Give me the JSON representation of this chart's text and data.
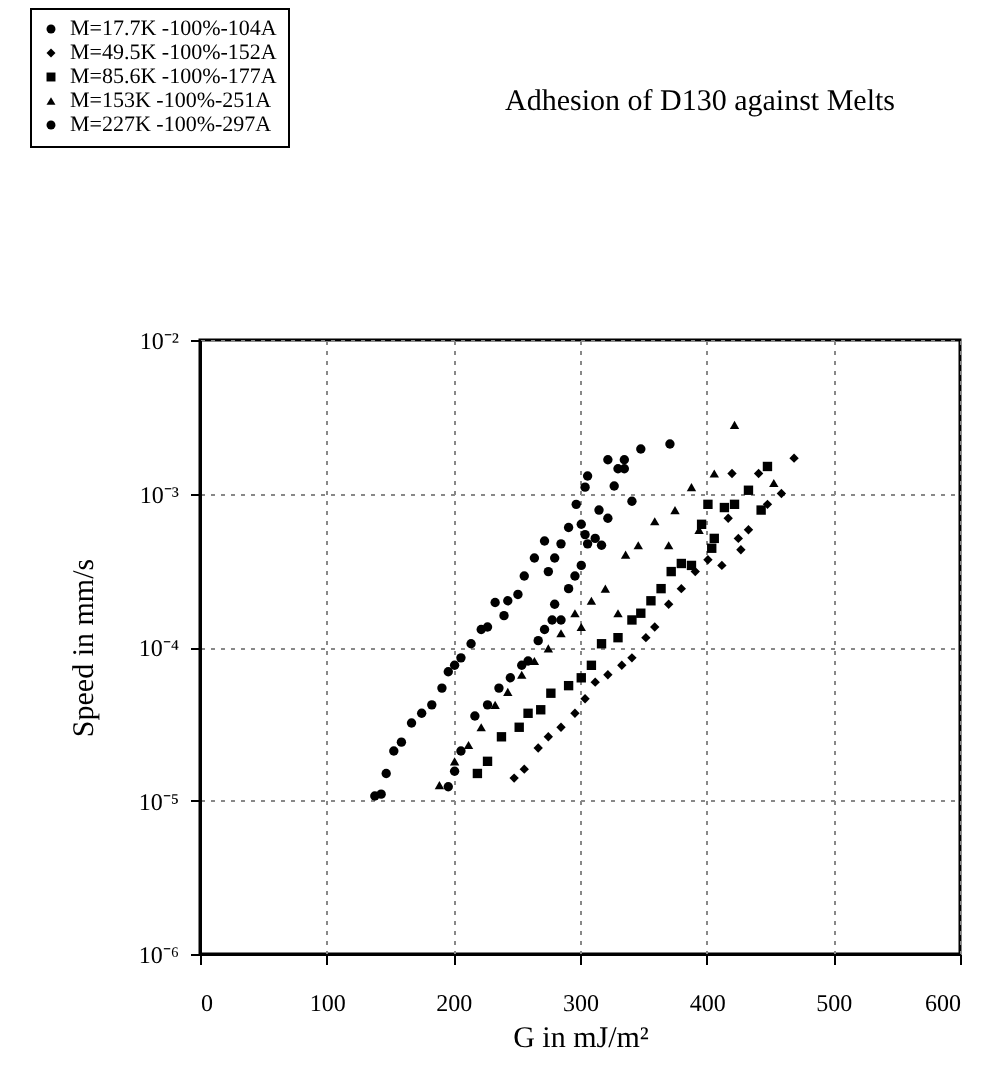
{
  "chart_data": {
    "type": "scatter",
    "title": "Adhesion of D130 against Melts",
    "xlabel": "G in mJ/m²",
    "ylabel": "Speed in mm/s",
    "log": "y",
    "grid": true,
    "legend": "top left",
    "xlim": [
      0,
      600
    ],
    "xticks": [
      0,
      100,
      200,
      300,
      400,
      500,
      600
    ],
    "ylim": [
      1e-06,
      0.01
    ],
    "yticks": [
      {
        "value": 1e-06,
        "label": "10⁻⁶"
      },
      {
        "value": 1e-05,
        "label": "10⁻⁵"
      },
      {
        "value": 0.0001,
        "label": "10⁻⁴"
      },
      {
        "value": 0.001,
        "label": "10⁻³"
      },
      {
        "value": 0.01,
        "label": "10⁻²"
      }
    ],
    "series": [
      {
        "name": "M=17.7K -100%-104A",
        "color": "#000000",
        "marker": "circle",
        "x": [
          196,
          201,
          206,
          217,
          227,
          236,
          245,
          254,
          259,
          267,
          272,
          278,
          285,
          280,
          291,
          296,
          301,
          306,
          312,
          317,
          304,
          322,
          330,
          335,
          341,
          348,
          371
        ],
        "values": [
          1.23e-05,
          1.55e-05,
          2.1e-05,
          3.55e-05,
          4.2e-05,
          5.4e-05,
          6.3e-05,
          7.6e-05,
          8.1e-05,
          0.00011,
          0.00013,
          0.00015,
          0.00015,
          0.00019,
          0.00024,
          0.00029,
          0.00034,
          0.00047,
          0.00051,
          0.00046,
          0.00054,
          0.00069,
          0.00145,
          0.00145,
          0.00089,
          0.00195,
          0.0021
        ]
      },
      {
        "name": "M=49.5K -100%-152A",
        "color": "#000000",
        "marker": "diamond",
        "x": [
          248,
          256,
          267,
          275,
          285,
          296,
          304,
          312,
          322,
          333,
          341,
          352,
          359,
          370,
          380,
          391,
          401,
          412,
          417,
          425,
          427,
          433,
          441,
          448,
          459,
          420,
          469
        ],
        "values": [
          1.4e-05,
          1.6e-05,
          2.2e-05,
          2.6e-05,
          3e-05,
          3.7e-05,
          4.6e-05,
          5.9e-05,
          6.6e-05,
          7.6e-05,
          8.5e-05,
          0.000115,
          0.000135,
          0.00019,
          0.00024,
          0.00031,
          0.00037,
          0.00034,
          0.00069,
          0.00051,
          0.00043,
          0.00058,
          0.00135,
          0.00085,
          0.001,
          0.00135,
          0.0017
        ]
      },
      {
        "name": "M=85.6K -100%-177A",
        "color": "#000000",
        "marker": "square",
        "x": [
          219,
          227,
          238,
          252,
          259,
          269,
          277,
          291,
          301,
          309,
          317,
          330,
          341,
          348,
          356,
          364,
          372,
          380,
          388,
          396,
          404,
          406,
          401,
          414,
          422,
          433,
          443,
          448
        ],
        "values": [
          1.5e-05,
          1.8e-05,
          2.6e-05,
          3e-05,
          3.7e-05,
          3.9e-05,
          5e-05,
          5.6e-05,
          6.3e-05,
          7.6e-05,
          0.000105,
          0.000115,
          0.00015,
          0.000166,
          0.0002,
          0.00024,
          0.00031,
          0.00035,
          0.00034,
          0.00063,
          0.00044,
          0.00051,
          0.00085,
          0.00081,
          0.00085,
          0.00105,
          0.00078,
          0.0015
        ]
      },
      {
        "name": "M=153K -100%-251A",
        "color": "#000000",
        "marker": "triangle",
        "x": [
          189,
          201,
          212,
          222,
          233,
          243,
          254,
          264,
          275,
          285,
          296,
          301,
          309,
          320,
          330,
          336,
          346,
          359,
          370,
          375,
          388,
          394,
          406,
          453,
          422
        ],
        "values": [
          1.26e-05,
          1.8e-05,
          2.3e-05,
          3e-05,
          4.2e-05,
          5.1e-05,
          6.6e-05,
          8.1e-05,
          9.8e-05,
          0.000123,
          0.000166,
          0.000135,
          0.0002,
          0.00024,
          0.000166,
          0.0004,
          0.00046,
          0.00066,
          0.00046,
          0.00078,
          0.0011,
          0.00058,
          0.00135,
          0.00117,
          0.0028
        ]
      },
      {
        "name": "M=227K -100%-297A",
        "color": "#000000",
        "marker": "circle",
        "x": [
          138,
          143,
          147,
          153,
          159,
          167,
          175,
          183,
          191,
          196,
          201,
          206,
          214,
          222,
          227,
          233,
          240,
          243,
          251,
          256,
          264,
          275,
          272,
          280,
          285,
          291,
          297,
          301,
          306,
          304,
          315,
          322,
          327,
          335
        ],
        "values": [
          1.07e-05,
          1.1e-05,
          1.5e-05,
          2.1e-05,
          2.4e-05,
          3.2e-05,
          3.7e-05,
          4.2e-05,
          5.4e-05,
          6.9e-05,
          7.6e-05,
          8.5e-05,
          0.000105,
          0.00013,
          0.000135,
          0.000195,
          0.00016,
          0.0002,
          0.00022,
          0.00029,
          0.00038,
          0.00031,
          0.00049,
          0.00038,
          0.00047,
          0.0006,
          0.00085,
          0.00063,
          0.0013,
          0.0011,
          0.00078,
          0.00166,
          0.00112,
          0.00166
        ]
      }
    ]
  }
}
